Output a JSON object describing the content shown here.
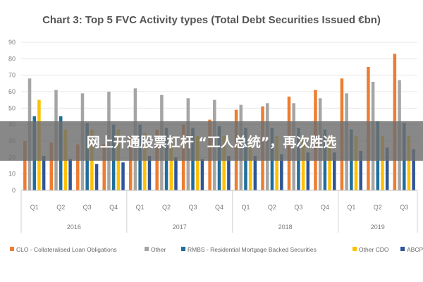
{
  "banner": {
    "text": "网上开通股票杠杆 “工人总统”，再次胜选"
  },
  "chart_data": {
    "type": "bar",
    "title": "Chart 3: Top 5 FVC Activity types (Total Debt Securities Issued €bn)",
    "xlabel": "",
    "ylabel": "",
    "ylim": [
      0,
      90
    ],
    "yticks": [
      0,
      10,
      20,
      30,
      40,
      50,
      60,
      70,
      80,
      90
    ],
    "grid": true,
    "legend_position": "bottom",
    "categories": [
      "Q1",
      "Q2",
      "Q3",
      "Q4",
      "Q1",
      "Q2",
      "Q3",
      "Q4",
      "Q1",
      "Q2",
      "Q3",
      "Q4",
      "Q1",
      "Q2",
      "Q3"
    ],
    "years": [
      {
        "label": "2016",
        "count": 4
      },
      {
        "label": "2017",
        "count": 4
      },
      {
        "label": "2018",
        "count": 4
      },
      {
        "label": "2019",
        "count": 3
      }
    ],
    "series": [
      {
        "name": "CLO - Collateralised Loan Obligations",
        "color": "#ed7d31",
        "values": [
          30,
          29,
          28,
          28,
          33,
          37,
          40,
          43,
          49,
          51,
          57,
          61,
          68,
          75,
          83
        ]
      },
      {
        "name": "Other",
        "color": "#a5a5a5",
        "values": [
          68,
          61,
          59,
          60,
          62,
          58,
          56,
          55,
          52,
          53,
          53,
          56,
          59,
          66,
          67
        ]
      },
      {
        "name": "RMBS - Residential Mortgage Backed Securities",
        "color": "#1f6e9c",
        "values": [
          45,
          45,
          41,
          40,
          40,
          38,
          38,
          39,
          38,
          38,
          38,
          37,
          37,
          42,
          41
        ]
      },
      {
        "name": "Other CDO",
        "color": "#ffc000",
        "values": [
          55,
          37,
          37,
          37,
          35,
          33,
          33,
          33,
          33,
          33,
          33,
          33,
          33,
          33,
          33
        ]
      },
      {
        "name": "ABCP",
        "color": "#2f5597",
        "values": [
          21,
          19,
          16,
          17,
          21,
          20,
          19,
          21,
          21,
          22,
          23,
          23,
          24,
          26,
          25
        ]
      }
    ]
  }
}
